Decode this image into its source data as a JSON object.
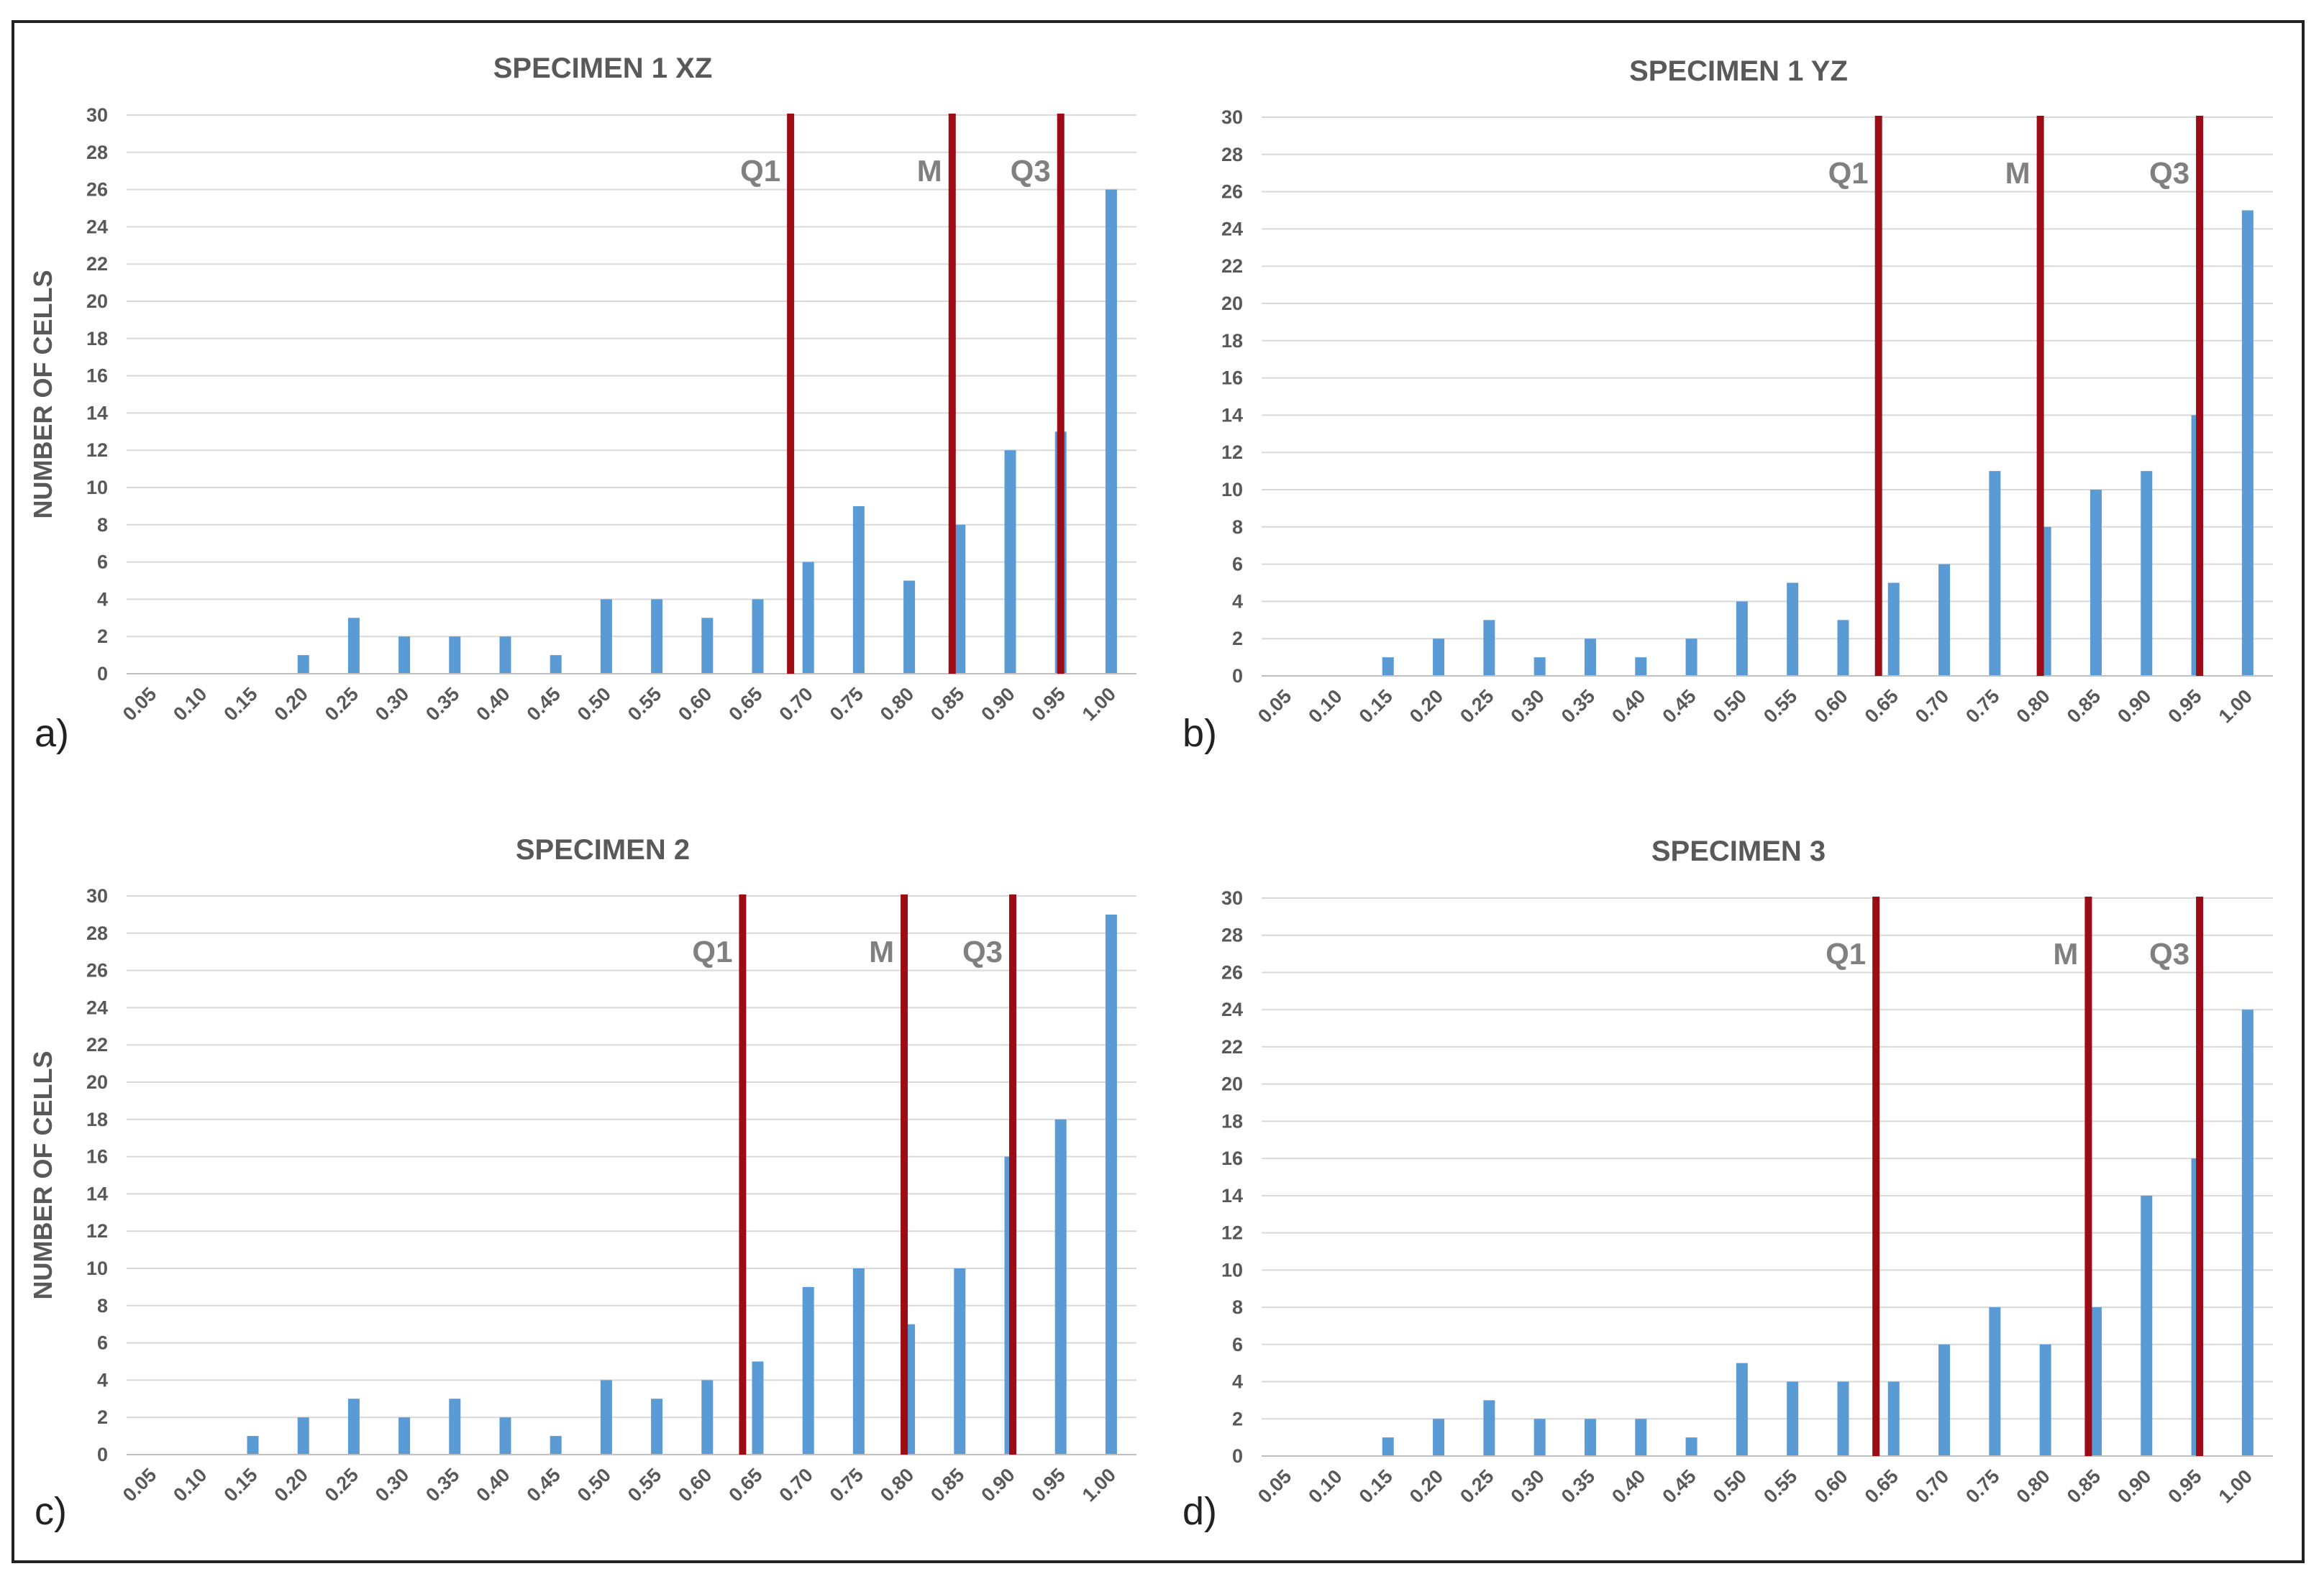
{
  "figure": {
    "y_axis_label": "NUMBER OF CELLS",
    "bar_color": "#5b9bd5",
    "line_color": "#9b0c14",
    "grid_color": "#d9d9d9",
    "text_color": "#595959"
  },
  "chart_data": [
    {
      "type": "bar",
      "panel": "a)",
      "title": "SPECIMEN 1 XZ",
      "ylabel": "NUMBER OF CELLS",
      "categories": [
        "0.05",
        "0.10",
        "0.15",
        "0.20",
        "0.25",
        "0.30",
        "0.35",
        "0.40",
        "0.45",
        "0.50",
        "0.55",
        "0.60",
        "0.65",
        "0.70",
        "0.75",
        "0.80",
        "0.85",
        "0.90",
        "0.95",
        "1.00"
      ],
      "values": [
        0,
        0,
        0,
        1,
        3,
        2,
        2,
        2,
        1,
        4,
        4,
        3,
        4,
        6,
        9,
        5,
        8,
        12,
        13,
        26
      ],
      "ylim": [
        0,
        30
      ],
      "yticks": [
        0,
        2,
        4,
        6,
        8,
        10,
        12,
        14,
        16,
        18,
        20,
        22,
        24,
        26,
        28,
        30
      ],
      "markers": [
        {
          "label": "Q1",
          "x": 13.15
        },
        {
          "label": "M",
          "x": 16.35
        },
        {
          "label": "Q3",
          "x": 18.5
        }
      ]
    },
    {
      "type": "bar",
      "panel": "b)",
      "title": "SPECIMEN 1 YZ",
      "ylabel": "",
      "categories": [
        "0.05",
        "0.10",
        "0.15",
        "0.20",
        "0.25",
        "0.30",
        "0.35",
        "0.40",
        "0.45",
        "0.50",
        "0.55",
        "0.60",
        "0.65",
        "0.70",
        "0.75",
        "0.80",
        "0.85",
        "0.90",
        "0.95",
        "1.00"
      ],
      "values": [
        0,
        0,
        1,
        2,
        3,
        1,
        2,
        1,
        2,
        4,
        5,
        3,
        5,
        6,
        11,
        8,
        10,
        11,
        14,
        25
      ],
      "ylim": [
        0,
        30
      ],
      "yticks": [
        0,
        2,
        4,
        6,
        8,
        10,
        12,
        14,
        16,
        18,
        20,
        22,
        24,
        26,
        28,
        30
      ],
      "markers": [
        {
          "label": "Q1",
          "x": 12.2
        },
        {
          "label": "M",
          "x": 15.4
        },
        {
          "label": "Q3",
          "x": 18.55
        }
      ]
    },
    {
      "type": "bar",
      "panel": "c)",
      "title": "SPECIMEN 2",
      "ylabel": "NUMBER OF CELLS",
      "categories": [
        "0.05",
        "0.10",
        "0.15",
        "0.20",
        "0.25",
        "0.30",
        "0.35",
        "0.40",
        "0.45",
        "0.50",
        "0.55",
        "0.60",
        "0.65",
        "0.70",
        "0.75",
        "0.80",
        "0.85",
        "0.90",
        "0.95",
        "1.00"
      ],
      "values": [
        0,
        0,
        1,
        2,
        3,
        2,
        3,
        2,
        1,
        4,
        3,
        4,
        5,
        9,
        10,
        7,
        10,
        16,
        18,
        29
      ],
      "ylim": [
        0,
        30
      ],
      "yticks": [
        0,
        2,
        4,
        6,
        8,
        10,
        12,
        14,
        16,
        18,
        20,
        22,
        24,
        26,
        28,
        30
      ],
      "markers": [
        {
          "label": "Q1",
          "x": 12.2
        },
        {
          "label": "M",
          "x": 15.4
        },
        {
          "label": "Q3",
          "x": 17.55
        }
      ]
    },
    {
      "type": "bar",
      "panel": "d)",
      "title": "SPECIMEN 3",
      "ylabel": "",
      "categories": [
        "0.05",
        "0.10",
        "0.15",
        "0.20",
        "0.25",
        "0.30",
        "0.35",
        "0.40",
        "0.45",
        "0.50",
        "0.55",
        "0.60",
        "0.65",
        "0.70",
        "0.75",
        "0.80",
        "0.85",
        "0.90",
        "0.95",
        "1.00"
      ],
      "values": [
        0,
        0,
        1,
        2,
        3,
        2,
        2,
        2,
        1,
        5,
        4,
        4,
        4,
        6,
        8,
        6,
        8,
        14,
        16,
        24
      ],
      "ylim": [
        0,
        30
      ],
      "yticks": [
        0,
        2,
        4,
        6,
        8,
        10,
        12,
        14,
        16,
        18,
        20,
        22,
        24,
        26,
        28,
        30
      ],
      "markers": [
        {
          "label": "Q1",
          "x": 12.15
        },
        {
          "label": "M",
          "x": 16.35
        },
        {
          "label": "Q3",
          "x": 18.55
        }
      ]
    }
  ]
}
